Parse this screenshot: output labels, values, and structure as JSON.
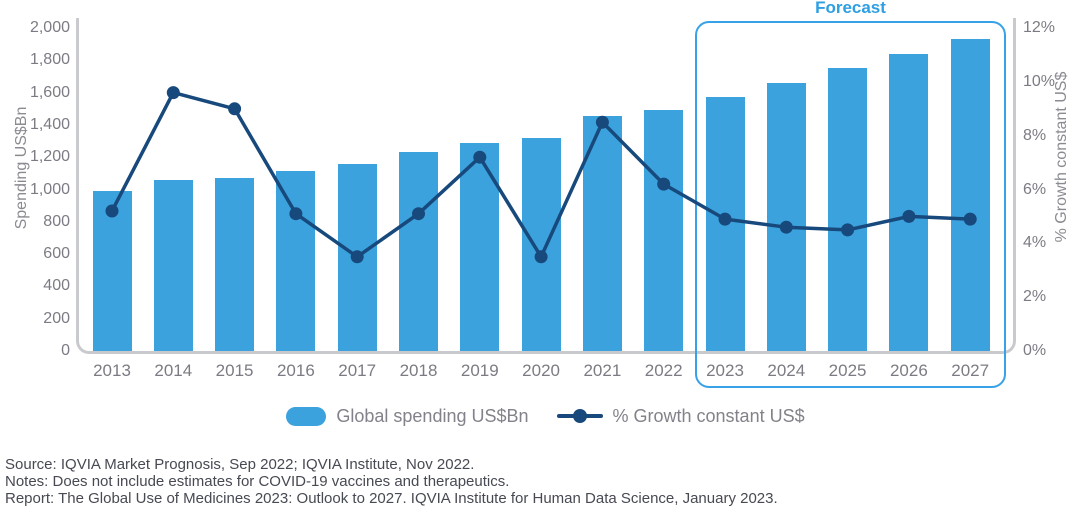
{
  "chart_data": {
    "type": "bar+line",
    "title": "",
    "categories": [
      "2013",
      "2014",
      "2015",
      "2016",
      "2017",
      "2018",
      "2019",
      "2020",
      "2021",
      "2022",
      "2023",
      "2024",
      "2025",
      "2026",
      "2027"
    ],
    "series": [
      {
        "name": "Global spending US$Bn",
        "type": "bar",
        "axis": "left",
        "values": [
          990,
          1060,
          1070,
          1115,
          1160,
          1230,
          1290,
          1320,
          1455,
          1490,
          1570,
          1660,
          1750,
          1840,
          1930
        ]
      },
      {
        "name": "% Growth constant US$",
        "type": "line",
        "axis": "right",
        "values": [
          5.2,
          9.6,
          9.0,
          5.1,
          3.5,
          5.1,
          7.2,
          3.5,
          8.5,
          6.2,
          4.9,
          4.6,
          4.5,
          5.0,
          4.9
        ]
      }
    ],
    "ylabel_left": "Spending US$Bn",
    "ylabel_right": "% Growth constant US$",
    "y_left": {
      "min": 0,
      "max": 2000,
      "tick_labels": [
        "2,000",
        "1,800",
        "1,600",
        "1,400",
        "1,200",
        "1,000",
        "800",
        "600",
        "400",
        "200",
        "0"
      ]
    },
    "y_right": {
      "min": 0,
      "max": 12,
      "tick_labels": [
        "12%",
        "10%",
        "8%",
        "6%",
        "4%",
        "2%",
        "0%"
      ]
    },
    "forecast": {
      "label": "Forecast",
      "start_year": "2023",
      "end_year": "2027"
    },
    "legend": [
      {
        "label": "Global spending US$Bn",
        "marker": "bar-swatch"
      },
      {
        "label": "% Growth constant US$",
        "marker": "line-dot"
      }
    ],
    "grid": "off",
    "legend_position": "bottom-center",
    "colors": {
      "bar": "#3ba2dd",
      "line": "#17497c",
      "forecast_accent": "#2d9fe2",
      "axis_line": "#c9cacd",
      "tick_text": "#7b7c83",
      "footer_text": "#474a52"
    }
  },
  "footer": {
    "source": "Source: IQVIA Market Prognosis, Sep 2022; IQVIA Institute, Nov 2022.",
    "notes": "Notes: Does not include estimates for COVID-19 vaccines and therapeutics.",
    "report": "Report: The Global Use of Medicines 2023: Outlook to 2027. IQVIA Institute for Human Data Science, January 2023."
  }
}
